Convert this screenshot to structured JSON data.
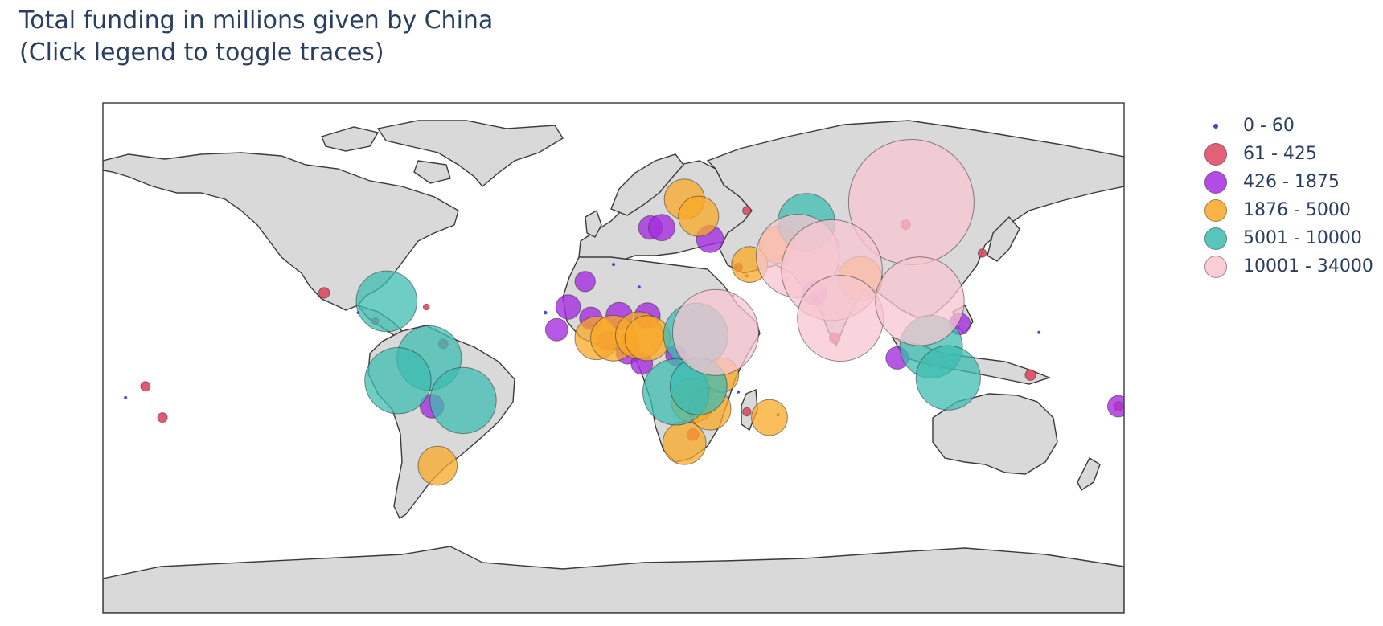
{
  "title": {
    "line1": "Total funding in millions given by China",
    "line2": "(Click legend to toggle traces)"
  },
  "legend": {
    "items": [
      {
        "label": "0 - 60",
        "color": "#3b2bbf",
        "marker": "tiny"
      },
      {
        "label": "61 - 425",
        "color": "#e0475f",
        "marker": "medium"
      },
      {
        "label": "426 - 1875",
        "color": "#a52de0",
        "marker": "medium"
      },
      {
        "label": "1876 - 5000",
        "color": "#f9a825",
        "marker": "medium"
      },
      {
        "label": "5001 - 10000",
        "color": "#3dbcb0",
        "marker": "medium"
      },
      {
        "label": "10001 - 34000",
        "color": "#f7c5d0",
        "marker": "medium"
      }
    ]
  },
  "chart_data": {
    "type": "scatter",
    "map_projection": "equirectangular",
    "lon_range": [
      -180,
      180
    ],
    "lat_range": [
      -90,
      90
    ],
    "size_max_value": 34000,
    "land_color": "#d9d9d9",
    "series": [
      {
        "name": "0 - 60",
        "color": "#3b2bbf",
        "opacity": 0.85,
        "points": [
          {
            "lon": -172,
            "lat": -14,
            "value": 20
          },
          {
            "lon": -24,
            "lat": 16,
            "value": 30
          },
          {
            "lon": -90,
            "lat": 16,
            "value": 15
          },
          {
            "lon": 58,
            "lat": -20,
            "value": 20
          },
          {
            "lon": 44,
            "lat": -12,
            "value": 15
          },
          {
            "lon": 150,
            "lat": 9,
            "value": 20
          },
          {
            "lon": 9,
            "lat": 25,
            "value": 15
          },
          {
            "lon": 47,
            "lat": 29,
            "value": 15
          },
          {
            "lon": 42,
            "lat": 22,
            "value": 15
          },
          {
            "lon": 0,
            "lat": 33,
            "value": 15
          }
        ]
      },
      {
        "name": "61 - 425",
        "color": "#e0475f",
        "opacity": 0.9,
        "points": [
          {
            "lon": -159,
            "lat": -21,
            "value": 200
          },
          {
            "lon": -165,
            "lat": -10,
            "value": 200
          },
          {
            "lon": -102,
            "lat": 23,
            "value": 250
          },
          {
            "lon": -84,
            "lat": 13,
            "value": 100
          },
          {
            "lon": -60,
            "lat": 5,
            "value": 200
          },
          {
            "lon": -66,
            "lat": 18,
            "value": 80
          },
          {
            "lon": 130,
            "lat": 37,
            "value": 150
          },
          {
            "lon": 147,
            "lat": -6,
            "value": 250
          },
          {
            "lon": 178,
            "lat": -17,
            "value": 200
          },
          {
            "lon": 47,
            "lat": -19,
            "value": 150
          },
          {
            "lon": 44,
            "lat": 32,
            "value": 150
          },
          {
            "lon": 103,
            "lat": 47,
            "value": 200
          },
          {
            "lon": 78,
            "lat": 7,
            "value": 250
          },
          {
            "lon": 47,
            "lat": 52,
            "value": 150
          },
          {
            "lon": 28,
            "lat": -27,
            "value": 300
          },
          {
            "lon": 4,
            "lat": 7,
            "value": 150
          },
          {
            "lon": -9,
            "lat": 12,
            "value": 100
          }
        ]
      },
      {
        "name": "426 - 1875",
        "color": "#a52de0",
        "opacity": 0.8,
        "points": [
          {
            "lon": -64,
            "lat": -17,
            "value": 1200
          },
          {
            "lon": -10,
            "lat": 27,
            "value": 900
          },
          {
            "lon": -16,
            "lat": 18,
            "value": 1300
          },
          {
            "lon": -20,
            "lat": 10,
            "value": 1100
          },
          {
            "lon": -8,
            "lat": 14,
            "value": 1100
          },
          {
            "lon": 2,
            "lat": 15,
            "value": 1500
          },
          {
            "lon": 12,
            "lat": 15,
            "value": 1400
          },
          {
            "lon": 5,
            "lat": 2,
            "value": 1200
          },
          {
            "lon": 10,
            "lat": -2,
            "value": 1000
          },
          {
            "lon": 22,
            "lat": 1,
            "value": 900
          },
          {
            "lon": -2,
            "lat": 6,
            "value": 800
          },
          {
            "lon": 13,
            "lat": 46,
            "value": 1200
          },
          {
            "lon": 17,
            "lat": 46,
            "value": 1500
          },
          {
            "lon": 34,
            "lat": 42,
            "value": 1600
          },
          {
            "lon": 71,
            "lat": 23,
            "value": 1300
          },
          {
            "lon": 122,
            "lat": 12,
            "value": 1000
          },
          {
            "lon": 100,
            "lat": 0,
            "value": 1100
          },
          {
            "lon": 178,
            "lat": -17,
            "value": 1000
          }
        ]
      },
      {
        "name": "1876 - 5000",
        "color": "#f9a825",
        "opacity": 0.75,
        "points": [
          {
            "lon": 25,
            "lat": 56,
            "value": 3500
          },
          {
            "lon": 30,
            "lat": 50,
            "value": 3500
          },
          {
            "lon": 58,
            "lat": 40,
            "value": 3000
          },
          {
            "lon": 48,
            "lat": 33,
            "value": 2800
          },
          {
            "lon": 87,
            "lat": 28,
            "value": 4200
          },
          {
            "lon": -62,
            "lat": -38,
            "value": 3300
          },
          {
            "lon": -6,
            "lat": 7,
            "value": 4000
          },
          {
            "lon": 0,
            "lat": 7,
            "value": 4500
          },
          {
            "lon": 9,
            "lat": 8,
            "value": 4800
          },
          {
            "lon": 12,
            "lat": 7,
            "value": 4400
          },
          {
            "lon": 28,
            "lat": -15,
            "value": 4200
          },
          {
            "lon": 34,
            "lat": -18,
            "value": 3800
          },
          {
            "lon": 25,
            "lat": -30,
            "value": 4000
          },
          {
            "lon": 55,
            "lat": -21,
            "value": 2800
          },
          {
            "lon": 38,
            "lat": -6,
            "value": 2600
          }
        ]
      },
      {
        "name": "5001 - 10000",
        "color": "#3dbcb0",
        "opacity": 0.75,
        "points": [
          {
            "lon": -80,
            "lat": 20,
            "value": 8000
          },
          {
            "lon": -65,
            "lat": 0,
            "value": 9000
          },
          {
            "lon": -76,
            "lat": -8,
            "value": 9500
          },
          {
            "lon": -53,
            "lat": -15,
            "value": 9500
          },
          {
            "lon": 68,
            "lat": 48,
            "value": 7000
          },
          {
            "lon": 29,
            "lat": 8,
            "value": 9000
          },
          {
            "lon": 22,
            "lat": -12,
            "value": 9500
          },
          {
            "lon": 30,
            "lat": -10,
            "value": 7000
          },
          {
            "lon": 112,
            "lat": 4,
            "value": 8500
          },
          {
            "lon": 118,
            "lat": -7,
            "value": 9000
          }
        ]
      },
      {
        "name": "10001 - 34000",
        "color": "#f7c5d0",
        "opacity": 0.75,
        "points": [
          {
            "lon": 105,
            "lat": 55,
            "value": 34000
          },
          {
            "lon": 65,
            "lat": 36,
            "value": 15000
          },
          {
            "lon": 77,
            "lat": 31,
            "value": 22000
          },
          {
            "lon": 80,
            "lat": 14,
            "value": 16000
          },
          {
            "lon": 108,
            "lat": 20,
            "value": 17000
          },
          {
            "lon": 36,
            "lat": 9,
            "value": 16000
          }
        ]
      }
    ]
  }
}
